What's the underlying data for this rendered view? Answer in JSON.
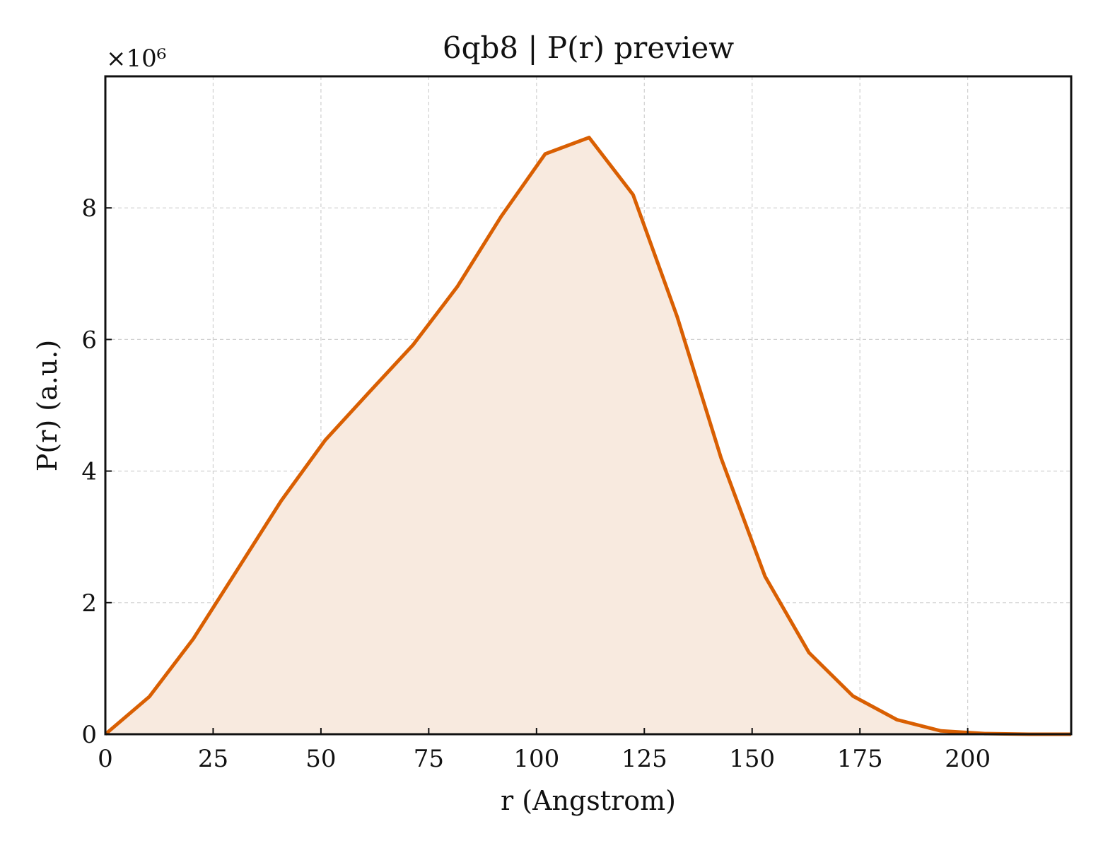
{
  "chart_data": {
    "type": "area",
    "title": "6qb8 | P(r) preview",
    "xlabel": "r (Angstrom)",
    "ylabel": "P(r) (a.u.)",
    "y_multiplier_label": "×10⁶",
    "xlim": [
      0,
      224
    ],
    "ylim": [
      0,
      10
    ],
    "xticks": [
      0,
      25,
      50,
      75,
      100,
      125,
      150,
      175,
      200
    ],
    "yticks": [
      0,
      2,
      4,
      6,
      8
    ],
    "grid": true,
    "line_color": "#d95f02",
    "fill_color": "#f8eadf",
    "series": [
      {
        "x": [
          0,
          10.2,
          20.4,
          30.6,
          40.8,
          51.0,
          61.2,
          71.4,
          81.6,
          91.8,
          102.0,
          112.2,
          122.4,
          132.6,
          142.8,
          153.0,
          163.2,
          173.4,
          183.6,
          193.8,
          204.0,
          214.2,
          224.0
        ],
        "values": [
          0,
          0.57,
          1.45,
          2.5,
          3.55,
          4.47,
          5.2,
          5.92,
          6.8,
          7.87,
          8.82,
          9.07,
          8.2,
          6.35,
          4.2,
          2.4,
          1.24,
          0.58,
          0.22,
          0.05,
          0.01,
          0.0,
          0.0
        ]
      }
    ]
  }
}
